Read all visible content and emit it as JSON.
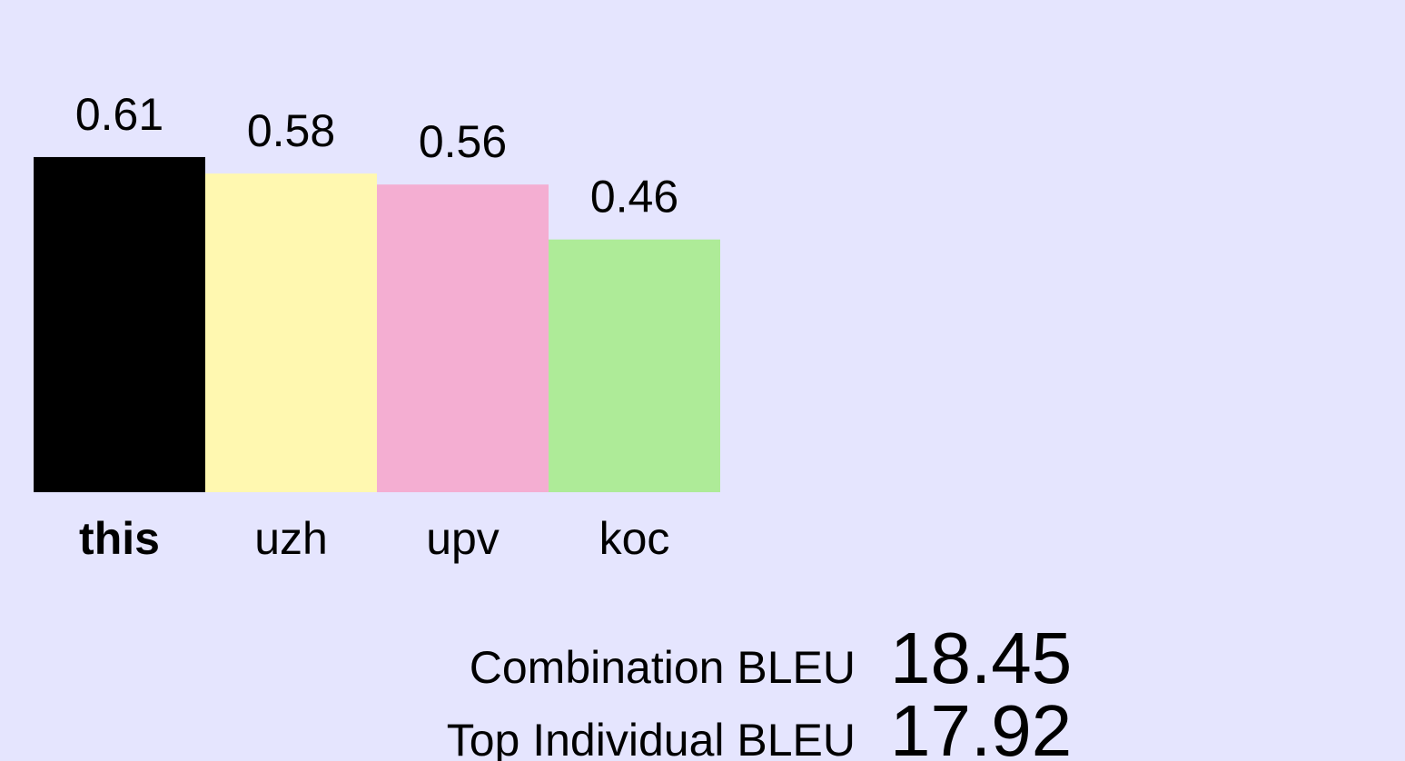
{
  "chart_data": {
    "type": "bar",
    "categories": [
      "this",
      "uzh",
      "upv",
      "koc"
    ],
    "values": [
      0.61,
      0.58,
      0.56,
      0.46
    ],
    "colors": [
      "#000000",
      "#fff8b0",
      "#f4aed2",
      "#aeeb98"
    ]
  },
  "summary": [
    {
      "label": "Combination BLEU",
      "value": 18.45
    },
    {
      "label": "Top Individual BLEU",
      "value": 17.92
    }
  ]
}
